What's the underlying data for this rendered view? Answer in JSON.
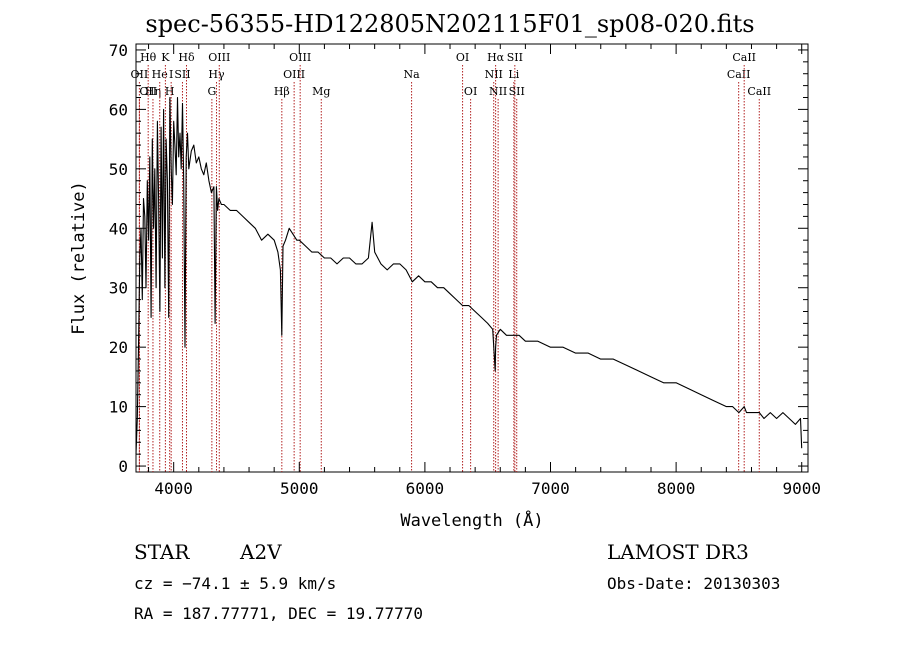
{
  "chart_data": {
    "type": "line",
    "title": "spec-56355-HD122805N202115F01_sp08-020.fits",
    "xlabel": "Wavelength (Å)",
    "ylabel": "Flux (relative)",
    "xlim": [
      3700,
      9050
    ],
    "ylim": [
      -1,
      71
    ],
    "xticks": [
      4000,
      5000,
      6000,
      7000,
      8000,
      9000
    ],
    "yticks": [
      0,
      10,
      20,
      30,
      40,
      50,
      60,
      70
    ],
    "series": [
      {
        "name": "spectrum",
        "x": [
          3700,
          3710,
          3720,
          3730,
          3740,
          3750,
          3760,
          3770,
          3780,
          3790,
          3800,
          3810,
          3820,
          3830,
          3840,
          3850,
          3860,
          3870,
          3880,
          3890,
          3900,
          3910,
          3920,
          3930,
          3940,
          3950,
          3960,
          3970,
          3980,
          3990,
          4000,
          4010,
          4020,
          4030,
          4040,
          4050,
          4060,
          4070,
          4080,
          4090,
          4100,
          4110,
          4120,
          4140,
          4160,
          4180,
          4200,
          4220,
          4240,
          4260,
          4280,
          4300,
          4320,
          4330,
          4340,
          4350,
          4360,
          4380,
          4400,
          4450,
          4500,
          4550,
          4600,
          4650,
          4700,
          4750,
          4800,
          4830,
          4850,
          4861,
          4870,
          4890,
          4920,
          4950,
          4980,
          5000,
          5050,
          5100,
          5150,
          5200,
          5250,
          5300,
          5350,
          5400,
          5450,
          5500,
          5550,
          5580,
          5600,
          5650,
          5700,
          5750,
          5800,
          5850,
          5900,
          5950,
          6000,
          6050,
          6100,
          6150,
          6200,
          6250,
          6300,
          6350,
          6400,
          6450,
          6500,
          6540,
          6560,
          6563,
          6570,
          6600,
          6650,
          6700,
          6750,
          6800,
          6900,
          7000,
          7100,
          7200,
          7300,
          7400,
          7500,
          7600,
          7700,
          7800,
          7900,
          8000,
          8100,
          8200,
          8300,
          8400,
          8450,
          8500,
          8542,
          8560,
          8600,
          8662,
          8700,
          8750,
          8800,
          8850,
          8900,
          8950,
          8990,
          9000
        ],
        "y": [
          2,
          8,
          20,
          35,
          40,
          28,
          45,
          42,
          30,
          48,
          38,
          52,
          25,
          55,
          40,
          50,
          30,
          58,
          45,
          26,
          57,
          35,
          60,
          30,
          55,
          48,
          25,
          62,
          50,
          44,
          58,
          54,
          49,
          62,
          52,
          56,
          50,
          61,
          48,
          20,
          52,
          56,
          50,
          53,
          54,
          51,
          52,
          50,
          49,
          51,
          48,
          46,
          47,
          24,
          47,
          43,
          45,
          44,
          44,
          43,
          43,
          42,
          41,
          40,
          38,
          39,
          38,
          36,
          33,
          22,
          37,
          38,
          40,
          39,
          38,
          38,
          37,
          36,
          36,
          35,
          35,
          34,
          35,
          35,
          34,
          34,
          35,
          41,
          36,
          34,
          33,
          34,
          34,
          33,
          31,
          32,
          31,
          31,
          30,
          30,
          29,
          28,
          27,
          27,
          26,
          25,
          24,
          23,
          16,
          20,
          22,
          23,
          22,
          22,
          22,
          21,
          21,
          20,
          20,
          19,
          19,
          18,
          18,
          17,
          16,
          15,
          14,
          14,
          13,
          12,
          11,
          10,
          10,
          9,
          10,
          9,
          9,
          9,
          8,
          9,
          8,
          9,
          8,
          7,
          8,
          3
        ]
      }
    ],
    "line_markers": [
      {
        "label": "OII",
        "x": 3727,
        "row": 2,
        "align": "center"
      },
      {
        "label": "Hθ",
        "x": 3797,
        "row": 1,
        "align": "center"
      },
      {
        "label": "OII",
        "x": 3727,
        "row": 3,
        "align": "start"
      },
      {
        "label": "Hη",
        "x": 3835,
        "row": 3,
        "align": "center"
      },
      {
        "label": "He",
        "x": 3889,
        "row": 2,
        "align": "center"
      },
      {
        "label": "K",
        "x": 3934,
        "row": 1,
        "align": "center"
      },
      {
        "label": "H",
        "x": 3968,
        "row": 3,
        "align": "center"
      },
      {
        "label": "I",
        "x": 3980,
        "row": 2,
        "align": "center"
      },
      {
        "label": "SII",
        "x": 4070,
        "row": 2,
        "align": "center"
      },
      {
        "label": "Hδ",
        "x": 4102,
        "row": 1,
        "align": "center"
      },
      {
        "label": "G",
        "x": 4304,
        "row": 3,
        "align": "center"
      },
      {
        "label": "Hγ",
        "x": 4341,
        "row": 2,
        "align": "center"
      },
      {
        "label": "OIII",
        "x": 4363,
        "row": 1,
        "align": "center"
      },
      {
        "label": "Hβ",
        "x": 4861,
        "row": 3,
        "align": "center"
      },
      {
        "label": "OIII",
        "x": 4959,
        "row": 2,
        "align": "center"
      },
      {
        "label": "OIII",
        "x": 5007,
        "row": 1,
        "align": "center"
      },
      {
        "label": "Mg",
        "x": 5175,
        "row": 3,
        "align": "center"
      },
      {
        "label": "Na",
        "x": 5894,
        "row": 2,
        "align": "center"
      },
      {
        "label": "OI",
        "x": 6300,
        "row": 1,
        "align": "center"
      },
      {
        "label": "OI",
        "x": 6364,
        "row": 3,
        "align": "center"
      },
      {
        "label": "NII",
        "x": 6548,
        "row": 2,
        "align": "center"
      },
      {
        "label": "Hα",
        "x": 6563,
        "row": 1,
        "align": "center"
      },
      {
        "label": "NII",
        "x": 6583,
        "row": 3,
        "align": "center"
      },
      {
        "label": "SII",
        "x": 6716,
        "row": 1,
        "align": "center"
      },
      {
        "label": "Li",
        "x": 6708,
        "row": 2,
        "align": "center"
      },
      {
        "label": "SII",
        "x": 6731,
        "row": 3,
        "align": "center"
      },
      {
        "label": "CaII",
        "x": 8498,
        "row": 2,
        "align": "center"
      },
      {
        "label": "CaII",
        "x": 8542,
        "row": 1,
        "align": "center"
      },
      {
        "label": "CaII",
        "x": 8662,
        "row": 3,
        "align": "center"
      }
    ]
  },
  "info": {
    "object_class": "STAR",
    "subclass": "A2V",
    "survey": "LAMOST DR3",
    "cz": "cz = −74.1 ± 5.9 km/s",
    "obs_date": "Obs-Date: 20130303",
    "ra_dec": "RA = 187.77771, DEC =  19.77770"
  },
  "colors": {
    "line_marker": "#b22222",
    "spectrum": "#000000",
    "axes": "#000000"
  }
}
